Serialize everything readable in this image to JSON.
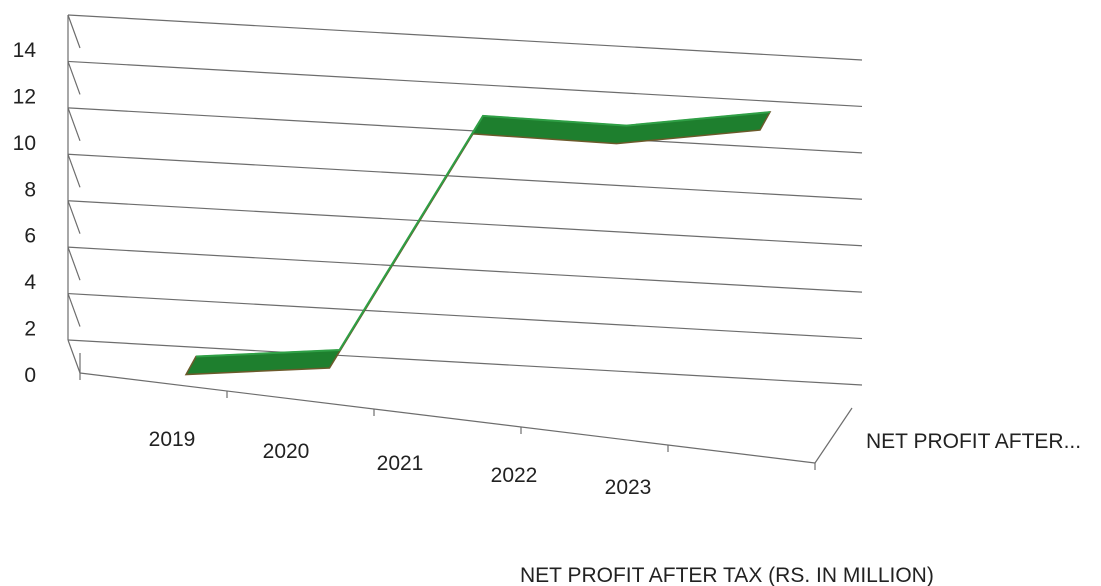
{
  "chart_data": {
    "type": "line",
    "style": "3d",
    "title": "NET PROFIT AFTER TAX (RS. IN MILLION)",
    "categories": [
      "2019",
      "2020",
      "2021",
      "2022",
      "2023"
    ],
    "series": [
      {
        "name": "NET PROFIT AFTER...",
        "values": [
          0.5,
          1.0,
          11.3,
          11.1,
          11.9
        ],
        "color": "#1e7f2e"
      }
    ],
    "ylim": [
      0,
      14
    ],
    "yticks": [
      "0",
      "2",
      "4",
      "6",
      "8",
      "10",
      "12",
      "14"
    ],
    "grid": true,
    "legend_position": "right"
  }
}
